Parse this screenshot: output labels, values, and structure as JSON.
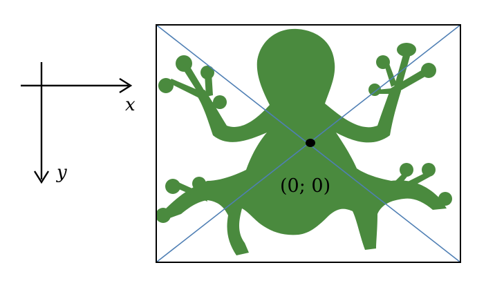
{
  "axes": {
    "x_label": "x",
    "y_label": "y"
  },
  "origin": {
    "label": "(0; 0)"
  },
  "colors": {
    "frog": "#4a8a3e",
    "diagonals": "#4f7fb4",
    "frame": "#000000",
    "axis_lines": "#000000"
  },
  "image": {
    "subject": "frog-silhouette"
  }
}
